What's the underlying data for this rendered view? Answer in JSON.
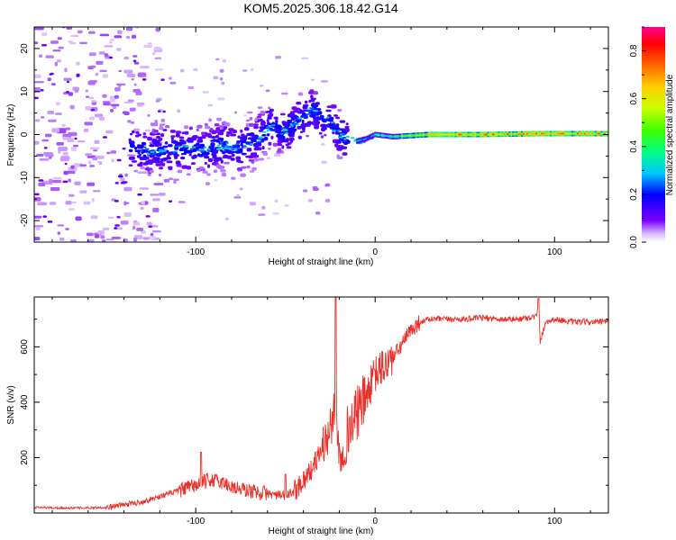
{
  "title": "KOM5.2025.306.18.42.G14",
  "chart_data": [
    {
      "type": "heatmap",
      "name": "spectrogram",
      "xlabel": "Height of straight line (km)",
      "ylabel": "Frequency (Hz)",
      "xlim": [
        -190,
        130
      ],
      "ylim": [
        -25,
        25
      ],
      "xticks": [
        -100,
        0,
        100
      ],
      "yticks": [
        -20,
        -10,
        0,
        10,
        20
      ],
      "ridge": [
        [
          -135,
          -3
        ],
        [
          -125,
          -4
        ],
        [
          -115,
          -3.5
        ],
        [
          -105,
          -3
        ],
        [
          -95,
          -3.5
        ],
        [
          -85,
          -2.5
        ],
        [
          -75,
          -3
        ],
        [
          -65,
          -1
        ],
        [
          -58,
          2
        ],
        [
          -50,
          0.5
        ],
        [
          -45,
          2.5
        ],
        [
          -40,
          4
        ],
        [
          -35,
          6
        ],
        [
          -30,
          4
        ],
        [
          -25,
          3
        ],
        [
          -20,
          0
        ],
        [
          -15,
          -1
        ],
        [
          -10,
          -1.5
        ],
        [
          -5,
          -1
        ],
        [
          0,
          0
        ],
        [
          10,
          -0.5
        ],
        [
          30,
          0
        ],
        [
          60,
          0
        ],
        [
          90,
          0.2
        ],
        [
          130,
          0.2
        ]
      ]
    },
    {
      "type": "line",
      "name": "snr",
      "xlabel": "Height of straight line (km)",
      "ylabel": "SNR (v/v)",
      "xlim": [
        -190,
        130
      ],
      "ylim": [
        0,
        780
      ],
      "xticks": [
        -100,
        0,
        100
      ],
      "yticks": [
        200,
        400,
        600
      ],
      "color": "#e8312b",
      "series": [
        {
          "name": "SNR",
          "x": [
            -190,
            -170,
            -150,
            -140,
            -130,
            -120,
            -110,
            -100,
            -92,
            -85,
            -78,
            -70,
            -60,
            -50,
            -45,
            -40,
            -35,
            -30,
            -25,
            -22,
            -20,
            -15,
            -10,
            -5,
            0,
            10,
            15,
            20,
            25,
            30,
            40,
            50,
            60,
            70,
            80,
            90,
            91,
            92,
            95,
            100,
            110,
            120,
            130
          ],
          "y": [
            20,
            18,
            20,
            30,
            40,
            60,
            80,
            100,
            120,
            110,
            90,
            80,
            70,
            60,
            80,
            120,
            160,
            230,
            300,
            380,
            200,
            300,
            360,
            420,
            500,
            560,
            610,
            660,
            690,
            700,
            700,
            700,
            705,
            700,
            700,
            710,
            760,
            620,
            690,
            700,
            690,
            690,
            690
          ]
        }
      ],
      "spikes": [
        {
          "x": -97,
          "y": 220
        },
        {
          "x": -50,
          "y": 140
        },
        {
          "x": -22,
          "y": 780
        },
        {
          "x": 91,
          "y": 775
        }
      ]
    }
  ],
  "colorbar": {
    "label": "Normalized spectral amplitude",
    "ticks": [
      "0.0",
      "0.2",
      "0.4",
      "0.6",
      "0.8"
    ],
    "tick_values": [
      0.0,
      0.2,
      0.4,
      0.6,
      0.8
    ],
    "range": [
      0,
      0.9
    ]
  }
}
